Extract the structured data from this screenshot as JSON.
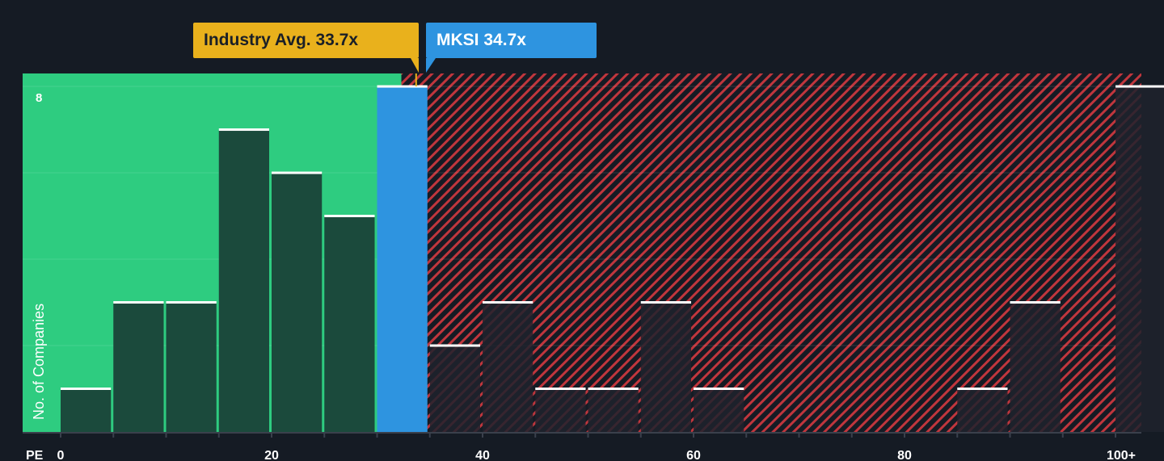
{
  "chart_data": {
    "type": "bar",
    "x_axis_label": "PE",
    "y_axis_label": "No. of Companies",
    "y_tick_labels": [
      "8"
    ],
    "x_tick_labels": [
      "0",
      "20",
      "40",
      "60",
      "80",
      "100+"
    ],
    "x_tick_values": [
      0,
      20,
      40,
      60,
      80,
      100
    ],
    "ylim": [
      0,
      8.3
    ],
    "xlim": [
      0,
      100
    ],
    "bin_width": 5,
    "bins": [
      {
        "start": 0,
        "end": 5,
        "value": 1
      },
      {
        "start": 5,
        "end": 10,
        "value": 3
      },
      {
        "start": 10,
        "end": 15,
        "value": 3
      },
      {
        "start": 15,
        "end": 20,
        "value": 7
      },
      {
        "start": 20,
        "end": 25,
        "value": 6
      },
      {
        "start": 25,
        "end": 30,
        "value": 5
      },
      {
        "start": 30,
        "end": 35,
        "value": 8,
        "highlight": true
      },
      {
        "start": 35,
        "end": 40,
        "value": 2
      },
      {
        "start": 40,
        "end": 45,
        "value": 3
      },
      {
        "start": 45,
        "end": 50,
        "value": 1
      },
      {
        "start": 50,
        "end": 55,
        "value": 1
      },
      {
        "start": 55,
        "end": 60,
        "value": 3
      },
      {
        "start": 60,
        "end": 65,
        "value": 1
      },
      {
        "start": 65,
        "end": 70,
        "value": 0
      },
      {
        "start": 70,
        "end": 75,
        "value": 0
      },
      {
        "start": 75,
        "end": 80,
        "value": 0
      },
      {
        "start": 80,
        "end": 85,
        "value": 0
      },
      {
        "start": 85,
        "end": 90,
        "value": 1
      },
      {
        "start": 90,
        "end": 95,
        "value": 3
      },
      {
        "start": 95,
        "end": 100,
        "value": 0
      },
      {
        "start": 100,
        "end": 105,
        "value": 8
      }
    ],
    "industry_avg": {
      "label": "Industry Avg. 33.7x",
      "value": 33.7
    },
    "company": {
      "label": "MKSI 34.7x",
      "value": 34.7
    },
    "colors": {
      "background": "#151b24",
      "undervalued_zone": "#2ecc80",
      "overvalued_stripe": "#c0363d",
      "bar_fill": "#1b4a3c",
      "bar_fill_over": "#1e222d",
      "bar_top": "#ffffff",
      "company_bar": "#2e94e0",
      "industry_marker": "#e9b11c",
      "axis_text": "#ffffff"
    }
  }
}
